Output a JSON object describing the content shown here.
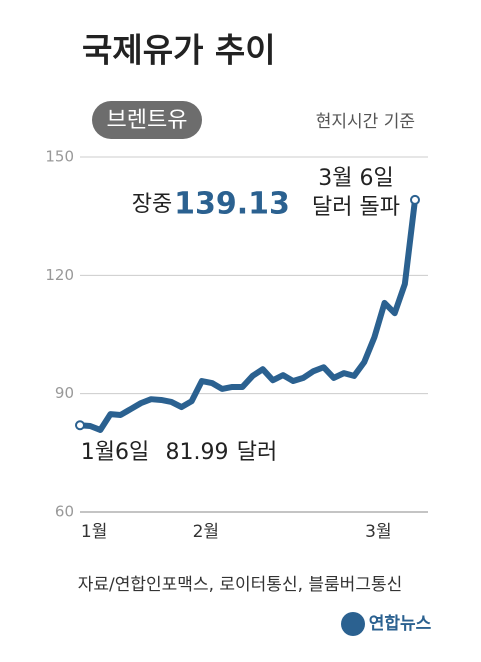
{
  "chart_data": {
    "type": "line",
    "title": "국제유가 추이",
    "note": "현지시간 기준",
    "categories": [
      null,
      "1월",
      null,
      null,
      null,
      null,
      null,
      null,
      null,
      null,
      null,
      null,
      "2월",
      null,
      null,
      null,
      null,
      null,
      null,
      null,
      null,
      null,
      null,
      null,
      null,
      null,
      null,
      null,
      null,
      "3월",
      null,
      null,
      null,
      null
    ],
    "series": [
      {
        "name": "브렌트유",
        "color": "#2b6190",
        "values": [
          81.99,
          81.8,
          80.8,
          84.8,
          84.6,
          86.1,
          87.6,
          88.6,
          88.4,
          87.9,
          86.6,
          88.1,
          93.2,
          92.7,
          91.2,
          91.7,
          91.7,
          94.5,
          96.2,
          93.4,
          94.7,
          93.2,
          94.0,
          95.7,
          96.7,
          94.0,
          95.2,
          94.5,
          98.0,
          104.3,
          113.0,
          110.4,
          117.8,
          139.13
        ]
      }
    ],
    "ylim": [
      60,
      150
    ],
    "yticks": [
      60,
      90,
      120,
      150
    ],
    "grid": true,
    "annotations": [
      "장중",
      "3월 6일",
      "달러 돌파",
      "1월6일",
      "달러"
    ],
    "source": "자료/연합인포맥스, 로이터통신, 블룸버그통신",
    "logo": "연합뉴스"
  }
}
